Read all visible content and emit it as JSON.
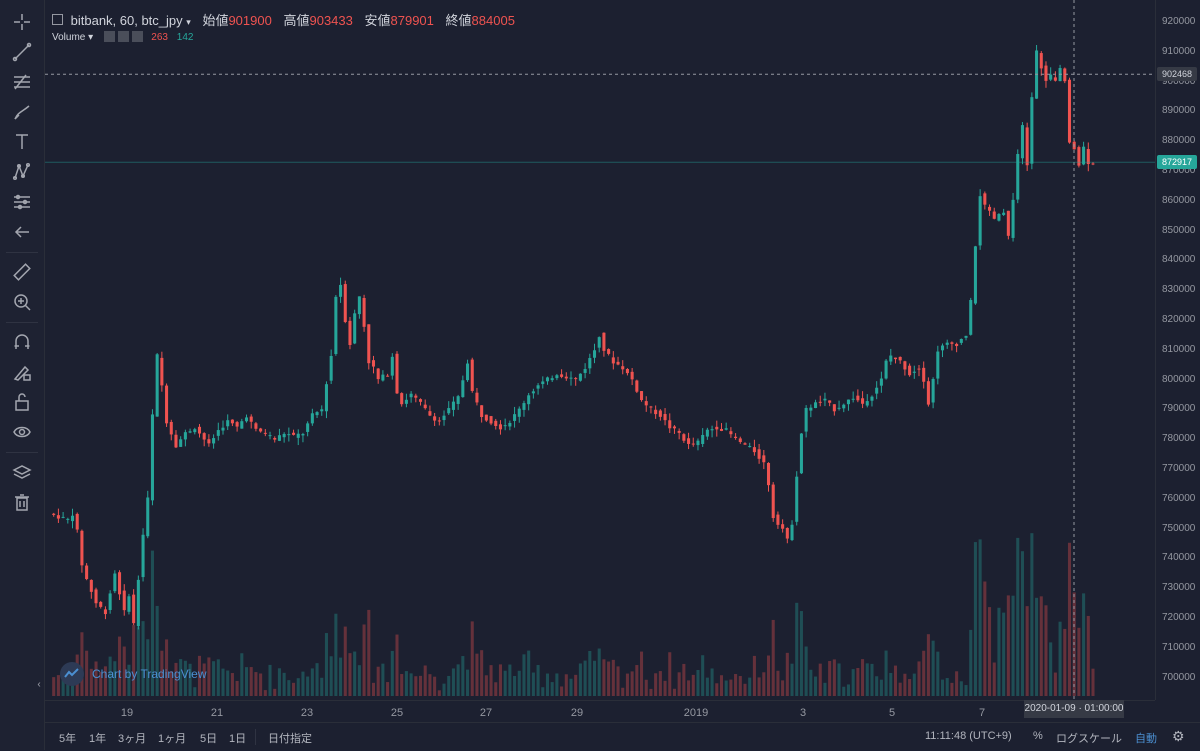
{
  "legend": {
    "symbol": "bitbank, 60, btc_jpy",
    "open_label": "始値",
    "open": "901900",
    "high_label": "高値",
    "high": "903433",
    "low_label": "安値",
    "low": "879901",
    "close_label": "終値",
    "close": "884005",
    "volume_label": "Volume",
    "vol_red": "263",
    "vol_green": "142"
  },
  "price_axis": {
    "ticks": [
      "920000",
      "910000",
      "900000",
      "890000",
      "880000",
      "870000",
      "860000",
      "850000",
      "840000",
      "830000",
      "820000",
      "810000",
      "800000",
      "790000",
      "780000",
      "770000",
      "760000",
      "750000",
      "740000",
      "730000",
      "720000",
      "710000",
      "700000"
    ],
    "crosshair_price": "902468",
    "last_price": "872917"
  },
  "time_axis": {
    "ticks": [
      "19",
      "21",
      "23",
      "25",
      "27",
      "29",
      "2019",
      "3",
      "5",
      "7"
    ],
    "crosshair_time": "2020-01-09 · 01:00:00"
  },
  "bottom_bar": {
    "ranges": [
      "5年",
      "1年",
      "3ヶ月",
      "1ヶ月",
      "5日",
      "1日"
    ],
    "date_picker": "日付指定",
    "clock": "11:11:48 (UTC+9)",
    "percent": "%",
    "log_scale": "ログスケール",
    "auto": "自動"
  },
  "watermark": "Chart by TradingView",
  "colors": {
    "up": "#26a69a",
    "down": "#ef5350",
    "bg": "#1c2030"
  },
  "chart_data": {
    "type": "candlestick",
    "ylim": [
      695000,
      923000
    ],
    "close_path": [
      [
        0,
        755000
      ],
      [
        2,
        754000
      ],
      [
        4,
        753000
      ],
      [
        5,
        755000
      ],
      [
        6,
        749000
      ],
      [
        7,
        738000
      ],
      [
        8,
        733000
      ],
      [
        10,
        725000
      ],
      [
        12,
        722000
      ],
      [
        14,
        735000
      ],
      [
        16,
        722000
      ],
      [
        17,
        728000
      ],
      [
        18,
        718000
      ],
      [
        19,
        733000
      ],
      [
        20,
        748000
      ],
      [
        21,
        760000
      ],
      [
        22,
        788000
      ],
      [
        23,
        808000
      ],
      [
        24,
        798000
      ],
      [
        25,
        786000
      ],
      [
        27,
        778000
      ],
      [
        29,
        782000
      ],
      [
        31,
        784000
      ],
      [
        34,
        778000
      ],
      [
        36,
        783000
      ],
      [
        38,
        786000
      ],
      [
        40,
        784000
      ],
      [
        42,
        788000
      ],
      [
        44,
        783000
      ],
      [
        46,
        782000
      ],
      [
        48,
        780000
      ],
      [
        50,
        782000
      ],
      [
        52,
        781000
      ],
      [
        54,
        782000
      ],
      [
        56,
        788000
      ],
      [
        58,
        790000
      ],
      [
        60,
        808000
      ],
      [
        61,
        828000
      ],
      [
        62,
        832000
      ],
      [
        63,
        820000
      ],
      [
        64,
        812000
      ],
      [
        65,
        822000
      ],
      [
        66,
        828000
      ],
      [
        67,
        818000
      ],
      [
        68,
        806000
      ],
      [
        69,
        804000
      ],
      [
        70,
        800000
      ],
      [
        72,
        802000
      ],
      [
        73,
        808000
      ],
      [
        74,
        796000
      ],
      [
        75,
        792000
      ],
      [
        77,
        795000
      ],
      [
        79,
        792000
      ],
      [
        81,
        788000
      ],
      [
        83,
        786000
      ],
      [
        85,
        790000
      ],
      [
        87,
        794000
      ],
      [
        88,
        800000
      ],
      [
        89,
        806000
      ],
      [
        90,
        796000
      ],
      [
        92,
        788000
      ],
      [
        94,
        786000
      ],
      [
        96,
        784000
      ],
      [
        98,
        786000
      ],
      [
        100,
        790000
      ],
      [
        102,
        795000
      ],
      [
        104,
        798000
      ],
      [
        106,
        800000
      ],
      [
        108,
        802000
      ],
      [
        110,
        801000
      ],
      [
        112,
        800000
      ],
      [
        114,
        804000
      ],
      [
        116,
        810000
      ],
      [
        117,
        815000
      ],
      [
        118,
        810000
      ],
      [
        120,
        806000
      ],
      [
        122,
        804000
      ],
      [
        124,
        800000
      ],
      [
        126,
        793000
      ],
      [
        128,
        790000
      ],
      [
        130,
        788000
      ],
      [
        132,
        784000
      ],
      [
        134,
        782000
      ],
      [
        136,
        778000
      ],
      [
        138,
        779000
      ],
      [
        140,
        783000
      ],
      [
        142,
        784000
      ],
      [
        144,
        783000
      ],
      [
        146,
        780000
      ],
      [
        148,
        778000
      ],
      [
        150,
        776000
      ],
      [
        152,
        772000
      ],
      [
        153,
        765000
      ],
      [
        154,
        754000
      ],
      [
        156,
        750000
      ],
      [
        157,
        746000
      ],
      [
        158,
        752000
      ],
      [
        159,
        768000
      ],
      [
        160,
        782000
      ],
      [
        161,
        790000
      ],
      [
        163,
        792000
      ],
      [
        165,
        793000
      ],
      [
        167,
        790000
      ],
      [
        169,
        792000
      ],
      [
        171,
        794000
      ],
      [
        173,
        792000
      ],
      [
        175,
        795000
      ],
      [
        177,
        800000
      ],
      [
        178,
        806000
      ],
      [
        179,
        808000
      ],
      [
        181,
        806000
      ],
      [
        183,
        802000
      ],
      [
        185,
        804000
      ],
      [
        186,
        800000
      ],
      [
        187,
        792000
      ],
      [
        188,
        800000
      ],
      [
        189,
        810000
      ],
      [
        191,
        812000
      ],
      [
        193,
        812000
      ],
      [
        195,
        815000
      ],
      [
        196,
        826000
      ],
      [
        197,
        845000
      ],
      [
        198,
        862000
      ],
      [
        199,
        858000
      ],
      [
        201,
        854000
      ],
      [
        203,
        856000
      ],
      [
        204,
        848000
      ],
      [
        205,
        860000
      ],
      [
        206,
        875000
      ],
      [
        207,
        885000
      ],
      [
        208,
        872000
      ],
      [
        209,
        895000
      ],
      [
        210,
        910000
      ],
      [
        211,
        905000
      ],
      [
        212,
        900000
      ],
      [
        213,
        902000
      ],
      [
        214,
        900000
      ],
      [
        215,
        904000
      ],
      [
        216,
        900000
      ],
      [
        217,
        880000
      ],
      [
        218,
        878000
      ],
      [
        219,
        872000
      ],
      [
        220,
        878000
      ],
      [
        221,
        873000
      ]
    ]
  }
}
